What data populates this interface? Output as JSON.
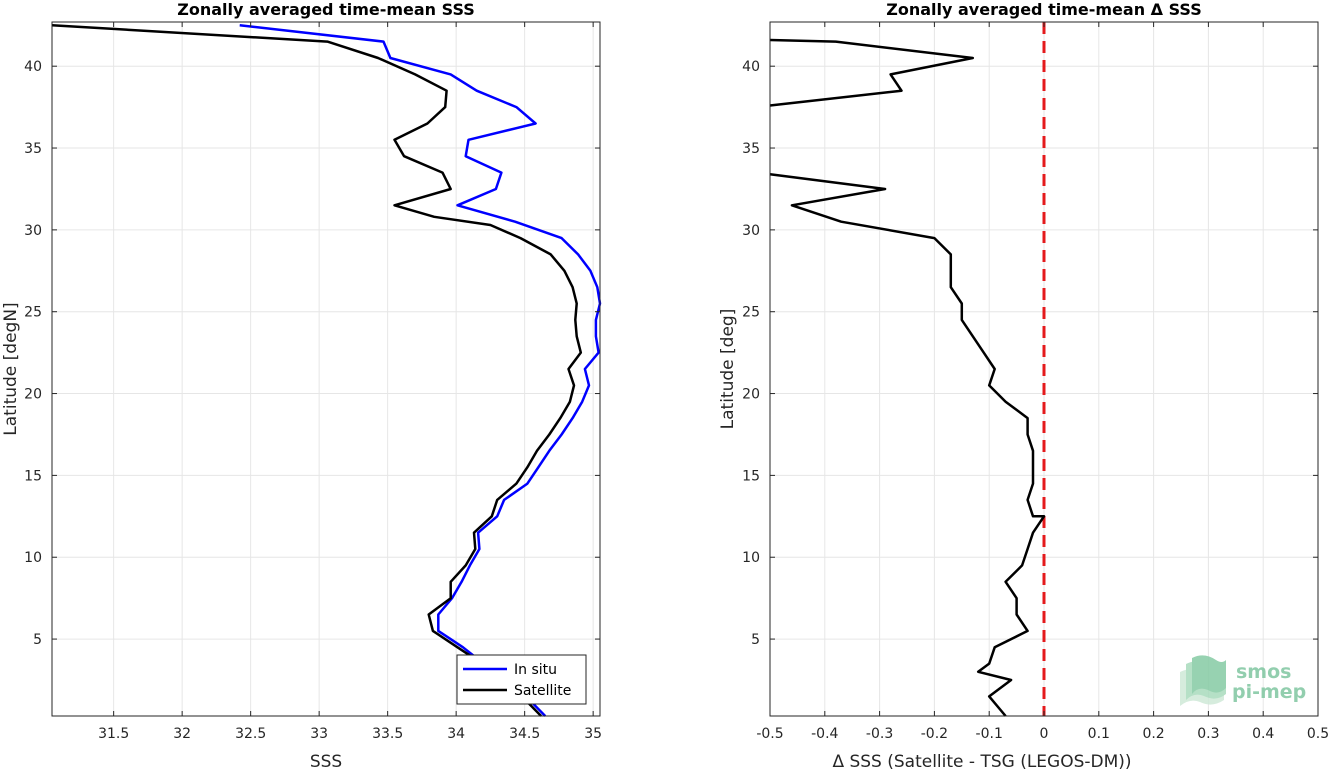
{
  "chart_data": [
    {
      "type": "line",
      "title": "Zonally averaged time-mean SSS",
      "xlabel": "SSS",
      "ylabel": "Latitude [degN]",
      "xlim": [
        31.05,
        35.05
      ],
      "ylim": [
        0.3,
        42.7
      ],
      "xticks": [
        31.5,
        32,
        32.5,
        33,
        33.5,
        34,
        34.5,
        35
      ],
      "xtick_labels": [
        "31.5",
        "32",
        "32.5",
        "33",
        "33.5",
        "34",
        "34.5",
        "35"
      ],
      "yticks": [
        5,
        10,
        15,
        20,
        25,
        30,
        35,
        40
      ],
      "ytick_labels": [
        "5",
        "10",
        "15",
        "20",
        "25",
        "30",
        "35",
        "40"
      ],
      "grid": true,
      "legend": "bottom-right",
      "series": [
        {
          "name": "In situ",
          "color": "#0000ff",
          "points": [
            [
              32.42,
              42.5
            ],
            [
              33.47,
              41.5
            ],
            [
              33.52,
              40.5
            ],
            [
              33.96,
              39.5
            ],
            [
              34.15,
              38.5
            ],
            [
              34.44,
              37.5
            ],
            [
              34.58,
              36.5
            ],
            [
              34.09,
              35.5
            ],
            [
              34.07,
              34.5
            ],
            [
              34.33,
              33.5
            ],
            [
              34.29,
              32.5
            ],
            [
              34.01,
              31.5
            ],
            [
              34.43,
              30.5
            ],
            [
              34.77,
              29.5
            ],
            [
              34.89,
              28.5
            ],
            [
              34.98,
              27.5
            ],
            [
              35.03,
              26.5
            ],
            [
              35.05,
              25.5
            ],
            [
              35.02,
              24.5
            ],
            [
              35.02,
              23.5
            ],
            [
              35.04,
              22.5
            ],
            [
              34.94,
              21.5
            ],
            [
              34.97,
              20.5
            ],
            [
              34.92,
              19.5
            ],
            [
              34.85,
              18.5
            ],
            [
              34.77,
              17.5
            ],
            [
              34.68,
              16.5
            ],
            [
              34.6,
              15.5
            ],
            [
              34.52,
              14.5
            ],
            [
              34.35,
              13.5
            ],
            [
              34.3,
              12.5
            ],
            [
              34.16,
              11.5
            ],
            [
              34.17,
              10.5
            ],
            [
              34.1,
              9.5
            ],
            [
              34.04,
              8.5
            ],
            [
              33.97,
              7.5
            ],
            [
              33.87,
              6.5
            ],
            [
              33.87,
              5.5
            ],
            [
              34.05,
              4.5
            ],
            [
              34.2,
              3.5
            ],
            [
              34.39,
              2.5
            ],
            [
              34.51,
              1.5
            ],
            [
              34.65,
              0.3
            ]
          ]
        },
        {
          "name": "Satellite",
          "color": "#000000",
          "points": [
            [
              31.05,
              42.5
            ],
            [
              33.06,
              41.5
            ],
            [
              33.43,
              40.5
            ],
            [
              33.7,
              39.5
            ],
            [
              33.93,
              38.5
            ],
            [
              33.92,
              37.5
            ],
            [
              33.79,
              36.5
            ],
            [
              33.55,
              35.5
            ],
            [
              33.62,
              34.5
            ],
            [
              33.9,
              33.5
            ],
            [
              33.96,
              32.5
            ],
            [
              33.55,
              31.5
            ],
            [
              33.84,
              30.8
            ],
            [
              34.25,
              30.3
            ],
            [
              34.47,
              29.5
            ],
            [
              34.69,
              28.5
            ],
            [
              34.79,
              27.5
            ],
            [
              34.85,
              26.5
            ],
            [
              34.88,
              25.5
            ],
            [
              34.87,
              24.5
            ],
            [
              34.88,
              23.5
            ],
            [
              34.91,
              22.5
            ],
            [
              34.82,
              21.5
            ],
            [
              34.86,
              20.5
            ],
            [
              34.83,
              19.5
            ],
            [
              34.76,
              18.5
            ],
            [
              34.68,
              17.5
            ],
            [
              34.59,
              16.5
            ],
            [
              34.52,
              15.5
            ],
            [
              34.44,
              14.5
            ],
            [
              34.3,
              13.5
            ],
            [
              34.26,
              12.5
            ],
            [
              34.13,
              11.5
            ],
            [
              34.14,
              10.5
            ],
            [
              34.07,
              9.5
            ],
            [
              33.96,
              8.5
            ],
            [
              33.96,
              7.5
            ],
            [
              33.8,
              6.5
            ],
            [
              33.83,
              5.5
            ],
            [
              34.01,
              4.5
            ],
            [
              34.19,
              3.5
            ],
            [
              34.35,
              2.5
            ],
            [
              34.48,
              1.5
            ],
            [
              34.62,
              0.3
            ]
          ]
        }
      ]
    },
    {
      "type": "line",
      "title": "Zonally averaged time-mean Δ SSS",
      "xlabel": "Δ SSS (Satellite - TSG (LEGOS-DM))",
      "ylabel": "Latitude [deg]",
      "xlim": [
        -0.5,
        0.5
      ],
      "ylim": [
        0.3,
        42.7
      ],
      "xticks": [
        -0.5,
        -0.4,
        -0.3,
        -0.2,
        -0.1,
        0,
        0.1,
        0.2,
        0.3,
        0.4,
        0.5
      ],
      "xtick_labels": [
        "-0.5",
        "-0.4",
        "-0.3",
        "-0.2",
        "-0.1",
        "0",
        "0.1",
        "0.2",
        "0.3",
        "0.4",
        "0.5"
      ],
      "yticks": [
        5,
        10,
        15,
        20,
        25,
        30,
        35,
        40
      ],
      "ytick_labels": [
        "5",
        "10",
        "15",
        "20",
        "25",
        "30",
        "35",
        "40"
      ],
      "grid": true,
      "reference_line": {
        "x": 0,
        "color": "#e41a1c",
        "style": "dashed"
      },
      "series": [
        {
          "color": "#000000",
          "segments": [
            [
              [
                -0.5,
                41.6
              ],
              [
                -0.38,
                41.5
              ],
              [
                -0.13,
                40.5
              ],
              [
                -0.28,
                39.5
              ],
              [
                -0.26,
                38.5
              ],
              [
                -0.5,
                37.6
              ]
            ],
            [
              [
                -0.5,
                33.4
              ],
              [
                -0.29,
                32.5
              ],
              [
                -0.46,
                31.5
              ],
              [
                -0.37,
                30.5
              ],
              [
                -0.2,
                29.5
              ],
              [
                -0.17,
                28.5
              ],
              [
                -0.17,
                27.5
              ],
              [
                -0.17,
                26.5
              ],
              [
                -0.15,
                25.5
              ],
              [
                -0.15,
                24.5
              ],
              [
                -0.13,
                23.5
              ],
              [
                -0.11,
                22.5
              ],
              [
                -0.09,
                21.5
              ],
              [
                -0.1,
                20.5
              ],
              [
                -0.07,
                19.5
              ],
              [
                -0.03,
                18.5
              ],
              [
                -0.03,
                17.5
              ],
              [
                -0.02,
                16.5
              ],
              [
                -0.02,
                15.5
              ],
              [
                -0.02,
                14.5
              ],
              [
                -0.03,
                13.5
              ],
              [
                -0.02,
                12.5
              ],
              [
                0.0,
                12.5
              ],
              [
                -0.02,
                11.5
              ],
              [
                -0.03,
                10.5
              ],
              [
                -0.04,
                9.5
              ],
              [
                -0.07,
                8.5
              ],
              [
                -0.05,
                7.5
              ],
              [
                -0.05,
                6.5
              ],
              [
                -0.03,
                5.5
              ],
              [
                -0.09,
                4.5
              ],
              [
                -0.1,
                3.5
              ],
              [
                -0.12,
                3.0
              ],
              [
                -0.06,
                2.5
              ],
              [
                -0.1,
                1.5
              ],
              [
                -0.07,
                0.3
              ]
            ]
          ]
        }
      ]
    }
  ],
  "watermark": {
    "line1": "smos",
    "line2": "pi-mep",
    "color": "#7fc6a0"
  }
}
